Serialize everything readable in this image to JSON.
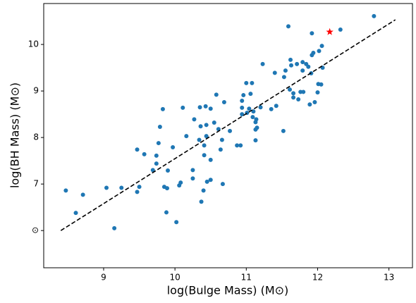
{
  "chart_data": {
    "type": "scatter",
    "xlabel": "log(Bulge Mass) (M⊙)",
    "ylabel": "log(BH Mass) (M⊙)",
    "color": "#1f77b4",
    "x": [
      8.47,
      8.61,
      8.71,
      9.04,
      9.15,
      9.25,
      9.47,
      9.47,
      9.5,
      9.57,
      9.69,
      9.74,
      9.74,
      9.77,
      9.79,
      9.83,
      9.85,
      9.88,
      9.89,
      9.9,
      9.97,
      10.02,
      10.06,
      10.08,
      10.11,
      10.16,
      10.25,
      10.25,
      10.27,
      10.34,
      10.35,
      10.36,
      10.37,
      10.4,
      10.41,
      10.41,
      10.43,
      10.44,
      10.44,
      10.45,
      10.5,
      10.5,
      10.5,
      10.55,
      10.58,
      10.61,
      10.64,
      10.66,
      10.67,
      10.69,
      10.77,
      10.87,
      10.92,
      10.94,
      10.94,
      10.94,
      10.96,
      11.0,
      11.01,
      11.04,
      11.06,
      11.08,
      11.09,
      11.1,
      11.13,
      11.13,
      11.13,
      11.15,
      11.14,
      11.2,
      11.23,
      11.35,
      11.4,
      11.42,
      11.52,
      11.53,
      11.55,
      11.59,
      11.61,
      11.62,
      11.63,
      11.66,
      11.66,
      11.71,
      11.73,
      11.76,
      11.79,
      11.8,
      11.79,
      11.84,
      11.87,
      11.89,
      11.91,
      11.92,
      11.94,
      11.96,
      12.0,
      12.01,
      12.02,
      12.06,
      12.05,
      11.92,
      12.32,
      12.79,
      12.07
    ],
    "values": [
      6.86,
      6.38,
      6.77,
      6.92,
      6.05,
      6.92,
      6.83,
      7.74,
      6.94,
      7.64,
      7.3,
      7.44,
      7.61,
      7.88,
      8.23,
      8.61,
      6.94,
      6.39,
      6.91,
      7.29,
      7.79,
      6.18,
      6.97,
      7.03,
      8.64,
      8.03,
      7.3,
      7.12,
      8.39,
      7.95,
      8.65,
      8.24,
      6.62,
      6.86,
      7.83,
      7.62,
      8.67,
      8.27,
      8.03,
      7.05,
      7.09,
      8.62,
      7.52,
      8.32,
      8.92,
      8.18,
      7.74,
      7.95,
      7.0,
      8.76,
      8.14,
      7.83,
      7.83,
      8.5,
      8.79,
      8.64,
      8.91,
      9.17,
      8.53,
      8.62,
      8.94,
      9.17,
      8.44,
      8.56,
      8.33,
      8.17,
      7.94,
      8.21,
      8.39,
      8.65,
      9.58,
      8.61,
      9.39,
      8.68,
      8.14,
      9.3,
      9.44,
      10.39,
      9.03,
      9.67,
      9.55,
      8.95,
      8.86,
      9.58,
      8.82,
      8.98,
      9.62,
      8.98,
      9.44,
      9.58,
      9.52,
      8.71,
      9.38,
      9.77,
      9.82,
      8.76,
      8.97,
      9.15,
      9.86,
      9.97,
      9.14,
      10.24,
      10.32,
      10.61,
      9.5
    ],
    "highlight": {
      "x": 12.17,
      "y": 10.27,
      "color": "#ff0000"
    },
    "fit_line": {
      "x": [
        8.4,
        13.09
      ],
      "y": [
        6.0,
        10.53
      ]
    },
    "xlim": [
      8.16,
      13.33
    ],
    "ylim": [
      5.2,
      10.88
    ],
    "xticks": [
      9,
      10,
      11,
      12,
      13
    ],
    "yticks": [
      {
        "value": 6,
        "label": "⊙"
      },
      7,
      8,
      9,
      10
    ]
  }
}
